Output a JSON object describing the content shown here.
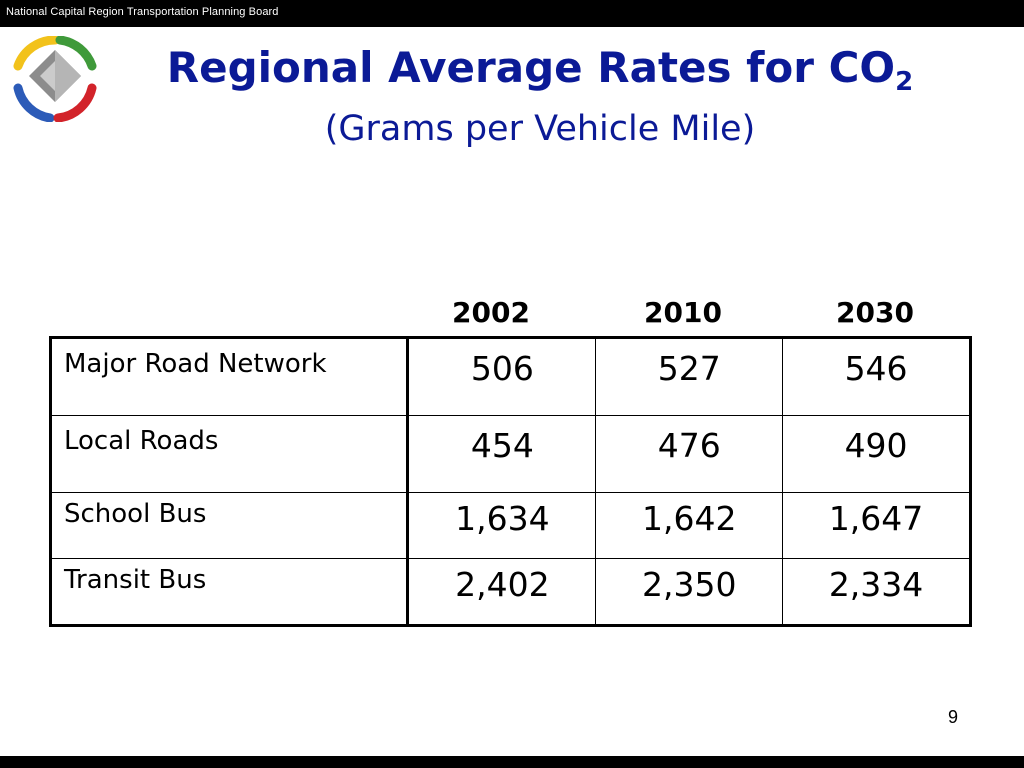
{
  "header": {
    "organization": "National Capital Region Transportation Planning Board"
  },
  "title": {
    "main": "Regional Average Rates for CO",
    "subscript": "2",
    "subtitle": "(Grams per Vehicle Mile)"
  },
  "table": {
    "columns": [
      "2002",
      "2010",
      "2030"
    ],
    "rows": [
      {
        "label": "Major Road Network",
        "values": [
          "506",
          "527",
          "546"
        ]
      },
      {
        "label": "Local Roads",
        "values": [
          "454",
          "476",
          "490"
        ]
      },
      {
        "label": "School Bus",
        "values": [
          "1,634",
          "1,642",
          "1,647"
        ]
      },
      {
        "label": "Transit Bus",
        "values": [
          "2,402",
          "2,350",
          "2,334"
        ]
      }
    ]
  },
  "footer": {
    "page_number": "9"
  },
  "colors": {
    "title": "#0b1a96",
    "bars": "#000000"
  },
  "logo": {
    "icon": "tpb-logo-icon"
  }
}
